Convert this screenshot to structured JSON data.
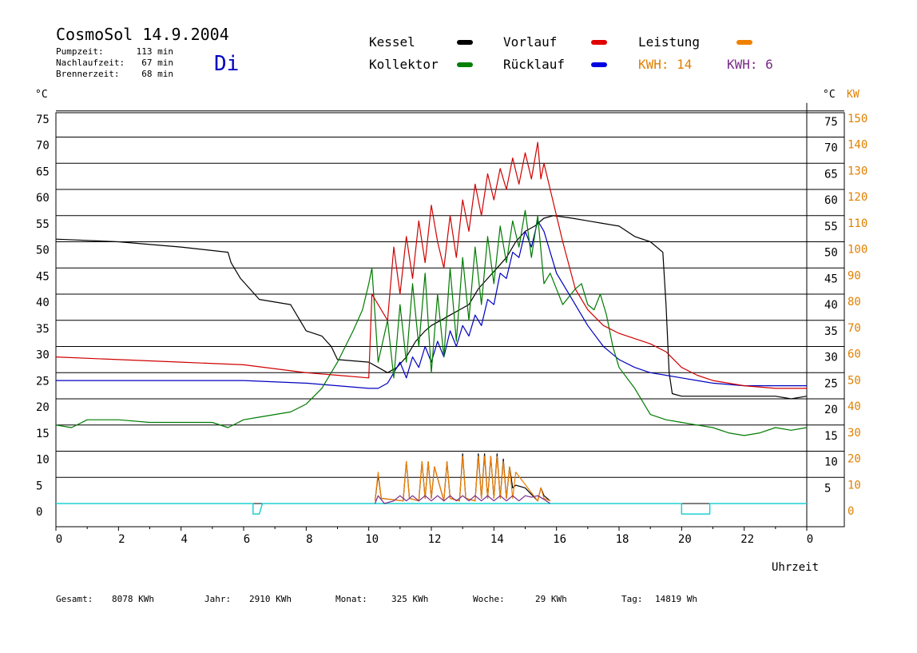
{
  "header": {
    "title": "CosmoSol 14.9.2004",
    "day": "Di",
    "stats": [
      {
        "label": "Pumpzeit:",
        "value": "113 min"
      },
      {
        "label": "Nachlaufzeit:",
        "value": "67 min"
      },
      {
        "label": "Brennerzeit:",
        "value": "68 min"
      }
    ]
  },
  "legend": {
    "items": [
      {
        "label": "Kessel",
        "color": "#000000"
      },
      {
        "label": "Vorlauf",
        "color": "#e00000"
      },
      {
        "label": "Leistung",
        "color": "#f08000"
      },
      {
        "label": "Kollektor",
        "color": "#008000"
      },
      {
        "label": "Rücklauf",
        "color": "#0000e0"
      }
    ],
    "kwh": [
      {
        "label": "KWH: 14",
        "color": "#e08000"
      },
      {
        "label": "KWH: 6",
        "color": "#7a2a8a"
      }
    ]
  },
  "footer": {
    "items": [
      {
        "label": "Gesamt:",
        "value": "8078 KWh"
      },
      {
        "label": "Jahr:",
        "value": "2910 KWh"
      },
      {
        "label": "Monat:",
        "value": "325 KWh"
      },
      {
        "label": "Woche:",
        "value": "29 KWh"
      },
      {
        "label": "Tag:",
        "value": "14819 Wh"
      }
    ]
  },
  "chart_data": {
    "type": "line",
    "xlabel": "Uhrzeit",
    "ylabel_left": "°C",
    "ylabel_right": "°C",
    "ylabel_right2": "KW",
    "xlim": [
      0,
      24
    ],
    "ylim": [
      -3,
      76
    ],
    "x_ticks": [
      "0",
      "2",
      "4",
      "6",
      "8",
      "10",
      "12",
      "14",
      "16",
      "18",
      "20",
      "22",
      "0"
    ],
    "y_ticks_left": [
      "0",
      "5",
      "10",
      "15",
      "20",
      "25",
      "30",
      "35",
      "40",
      "45",
      "50",
      "55",
      "60",
      "65",
      "70",
      "75"
    ],
    "y_ticks_right": [
      "5",
      "10",
      "15",
      "20",
      "25",
      "30",
      "35",
      "40",
      "45",
      "50",
      "55",
      "60",
      "65",
      "70",
      "75"
    ],
    "y_ticks_kw": [
      "0",
      "10",
      "20",
      "30",
      "40",
      "50",
      "60",
      "70",
      "80",
      "90",
      "100",
      "110",
      "120",
      "130",
      "140",
      "150"
    ],
    "grid": true,
    "colors": {
      "kessel": "#000000",
      "vorlauf": "#d00000",
      "kollektor": "#007a00",
      "ruecklauf": "#0000c0",
      "leistung": "#f08000",
      "kwh_purple": "#7a2a8a",
      "pump": "#20d0d0"
    },
    "series": [
      {
        "key": "kessel",
        "x": [
          0,
          2,
          4,
          5.5,
          5.6,
          5.9,
          6.2,
          6.5,
          7.5,
          7.8,
          8.0,
          8.5,
          8.8,
          9.0,
          10.0,
          10.3,
          10.6,
          10.9,
          11.2,
          11.5,
          11.8,
          12.0,
          12.3,
          12.6,
          12.9,
          13.2,
          13.5,
          13.8,
          14.1,
          14.4,
          14.7,
          15.0,
          15.3,
          15.6,
          15.9,
          16.5,
          17.0,
          17.5,
          18.0,
          18.5,
          19.0,
          19.4,
          19.5,
          19.6,
          19.7,
          20.0,
          21.0,
          22.0,
          23.0,
          23.5,
          24.0
        ],
        "y": [
          50.5,
          50,
          49,
          48,
          46,
          43,
          41,
          39,
          38,
          35,
          33,
          32,
          30,
          27.5,
          27,
          26,
          25,
          26,
          28,
          31,
          33,
          34,
          35,
          36,
          37,
          38,
          41,
          43,
          45,
          47,
          50,
          52,
          53,
          54.5,
          55,
          54.5,
          54,
          53.5,
          53,
          51,
          50,
          48,
          38,
          25,
          21,
          20.5,
          20.5,
          20.5,
          20.5,
          20,
          20.5
        ]
      },
      {
        "key": "vorlauf",
        "x": [
          0,
          2,
          4,
          6,
          8,
          9,
          10,
          10.1,
          10.3,
          10.6,
          10.8,
          11.0,
          11.2,
          11.4,
          11.6,
          11.8,
          12.0,
          12.2,
          12.4,
          12.6,
          12.8,
          13.0,
          13.2,
          13.4,
          13.6,
          13.8,
          14.0,
          14.2,
          14.4,
          14.6,
          14.8,
          15.0,
          15.2,
          15.4,
          15.5,
          15.6,
          15.8,
          16.2,
          16.6,
          17.0,
          17.5,
          18.0,
          19.0,
          19.5,
          20.0,
          20.5,
          21.0,
          22.0,
          23.0,
          24.0
        ],
        "y": [
          28,
          27.5,
          27,
          26.5,
          25,
          24.5,
          24,
          40,
          38,
          35,
          49,
          40,
          51,
          43,
          54,
          46,
          57,
          50,
          45,
          55,
          47,
          58,
          52,
          61,
          55,
          63,
          58,
          64,
          60,
          66,
          61,
          67,
          62,
          69,
          62,
          65,
          60,
          50,
          41,
          37,
          34,
          32.5,
          30.5,
          29,
          26,
          24.5,
          23.5,
          22.5,
          22,
          22
        ]
      },
      {
        "key": "kollektor",
        "x": [
          0,
          0.5,
          1,
          2,
          3,
          4,
          5,
          5.5,
          6,
          6.5,
          7,
          7.5,
          8,
          8.5,
          9,
          9.5,
          9.8,
          10.0,
          10.1,
          10.3,
          10.6,
          10.8,
          11.0,
          11.2,
          11.4,
          11.6,
          11.8,
          12.0,
          12.2,
          12.4,
          12.6,
          12.8,
          13.0,
          13.2,
          13.4,
          13.6,
          13.8,
          14.0,
          14.2,
          14.4,
          14.6,
          14.8,
          15.0,
          15.2,
          15.4,
          15.6,
          15.8,
          16.2,
          16.6,
          16.8,
          17.0,
          17.2,
          17.4,
          17.6,
          17.8,
          18.0,
          18.5,
          19.0,
          19.5,
          20.0,
          20.5,
          21.0,
          21.5,
          22.0,
          22.5,
          23.0,
          23.5,
          24.0
        ],
        "y": [
          15,
          14.5,
          16,
          16,
          15.5,
          15.5,
          15.5,
          14.5,
          16,
          16.5,
          17,
          17.5,
          19,
          22,
          27,
          33,
          37,
          42,
          45,
          27,
          35,
          24,
          38,
          27,
          42,
          30,
          44,
          25,
          40,
          28,
          45,
          31,
          47,
          35,
          49,
          38,
          51,
          42,
          53,
          46,
          54,
          49,
          56,
          47,
          55,
          42,
          44,
          38,
          41,
          42,
          38,
          37,
          40,
          36,
          30,
          26,
          22,
          17,
          16,
          15.5,
          15,
          14.5,
          13.5,
          13,
          13.5,
          14.5,
          14,
          14.5
        ]
      },
      {
        "key": "ruecklauf",
        "x": [
          0,
          2,
          4,
          6,
          8,
          9,
          10,
          10.3,
          10.6,
          10.8,
          11.0,
          11.2,
          11.4,
          11.6,
          11.8,
          12.0,
          12.2,
          12.4,
          12.6,
          12.8,
          13.0,
          13.2,
          13.4,
          13.6,
          13.8,
          14.0,
          14.2,
          14.4,
          14.6,
          14.8,
          15.0,
          15.2,
          15.4,
          15.6,
          16.0,
          16.5,
          17.0,
          17.5,
          18.0,
          18.5,
          19.0,
          19.5,
          20.0,
          20.5,
          21.0,
          22.0,
          23.0,
          24.0
        ],
        "y": [
          23.5,
          23.5,
          23.5,
          23.5,
          23,
          22.5,
          22,
          22,
          23,
          25,
          27,
          24,
          28,
          26,
          30,
          27,
          31,
          28,
          33,
          30,
          34,
          32,
          36,
          34,
          39,
          38,
          44,
          43,
          48,
          47,
          52,
          49,
          54,
          52,
          44,
          39,
          34,
          30,
          27.5,
          26,
          25,
          24.5,
          24,
          23.5,
          23,
          22.5,
          22.5,
          22.5
        ]
      },
      {
        "key": "leistung",
        "x": [
          10.2,
          10.3,
          10.4,
          11.1,
          11.2,
          11.3,
          11.6,
          11.7,
          11.8,
          11.9,
          12.0,
          12.1,
          12.4,
          12.5,
          12.6,
          12.9,
          13.0,
          13.1,
          13.4,
          13.5,
          13.6,
          13.7,
          13.8,
          13.9,
          14.0,
          14.1,
          14.2,
          14.3,
          14.4,
          14.5,
          14.6,
          14.7,
          15.4,
          15.5,
          15.6,
          15.8
        ],
        "y": [
          0.5,
          6,
          1,
          0.5,
          8,
          1,
          0.5,
          8,
          1,
          8,
          1,
          7,
          0.5,
          8,
          1,
          0.5,
          9,
          1,
          0.5,
          9,
          1,
          9,
          1,
          9,
          1,
          9,
          1,
          8,
          1,
          7,
          1,
          6,
          0.5,
          3,
          1,
          0.5
        ]
      },
      {
        "key": "brenner",
        "x": [
          10.2,
          10.3,
          10.4,
          11.1,
          11.2,
          11.3,
          11.6,
          11.7,
          11.8,
          11.9,
          12.0,
          12.1,
          12.4,
          12.5,
          12.6,
          12.9,
          13.0,
          13.1,
          13.4,
          13.5,
          13.6,
          13.7,
          13.8,
          13.9,
          14.0,
          14.1,
          14.2,
          14.3,
          14.4,
          14.5,
          14.6,
          14.7,
          15.0,
          15.4,
          15.5,
          15.6,
          15.8
        ],
        "y": [
          0.5,
          5.5,
          1,
          0.5,
          8,
          1,
          0.5,
          8,
          1,
          8,
          1,
          7,
          0.5,
          8,
          1,
          0.5,
          9.5,
          1,
          0.5,
          9.5,
          1,
          9.5,
          1,
          9,
          1,
          9.5,
          1,
          8.5,
          1,
          7,
          3,
          3.5,
          3,
          0.5,
          3,
          1.5,
          0.5
        ]
      },
      {
        "key": "kwh_purple",
        "x": [
          10.2,
          10.3,
          10.5,
          10.8,
          11.0,
          11.2,
          11.4,
          11.6,
          11.8,
          12.0,
          12.2,
          12.4,
          12.6,
          12.8,
          13.0,
          13.2,
          13.4,
          13.6,
          13.8,
          14.0,
          14.2,
          14.4,
          14.6,
          14.8,
          15.0,
          15.2,
          15.4,
          15.6,
          15.8
        ],
        "y": [
          0,
          1.5,
          0,
          0.5,
          1.5,
          0.5,
          1.5,
          0.5,
          1.5,
          0.5,
          1.5,
          0.5,
          1.5,
          0.5,
          1.5,
          0.5,
          1.5,
          0.5,
          1.5,
          0.5,
          1.5,
          0.5,
          1.5,
          0.5,
          1.5,
          1.2,
          1.5,
          0.8,
          0
        ]
      },
      {
        "key": "pump",
        "x": [
          0,
          6.3,
          6.3,
          6.5,
          6.6,
          6.6,
          20,
          20,
          20.9,
          20.9,
          24
        ],
        "y": [
          0,
          0,
          -2,
          -2,
          0,
          0,
          0,
          -2,
          -2,
          0,
          0
        ]
      }
    ]
  }
}
